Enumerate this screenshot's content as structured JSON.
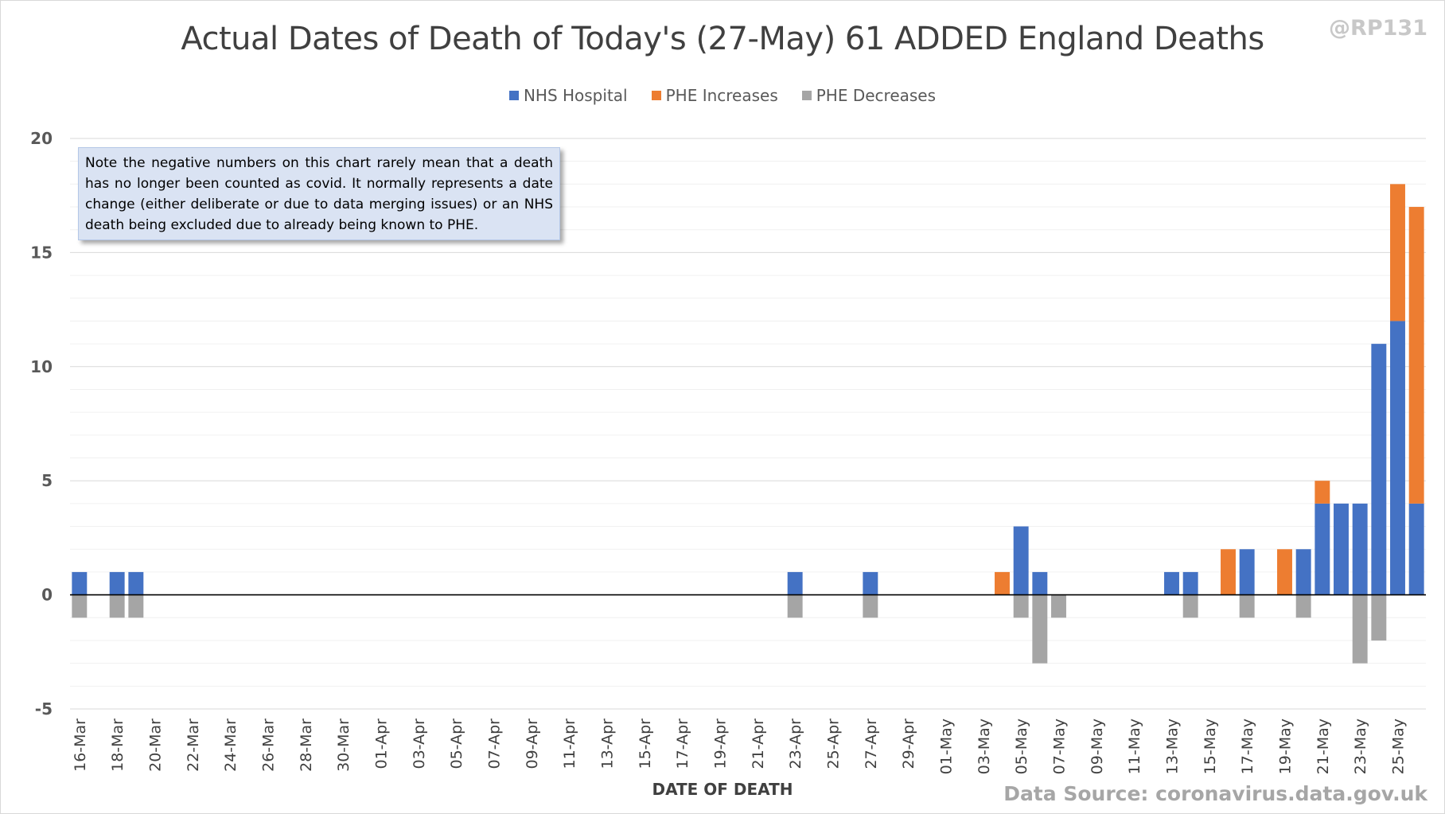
{
  "title": "Actual Dates of Death of Today's (27-May) 61 ADDED England Deaths",
  "handle": "@RP131",
  "note": "Note the negative numbers on this chart rarely mean that a death has no longer been counted as covid. It normally represents a date change (either deliberate or due to data merging issues) or an NHS death being excluded due to already being known to PHE.",
  "source": "Data Source: coronavirus.data.gov.uk",
  "chart_data": {
    "type": "bar",
    "stacked": true,
    "title": "Actual Dates of Death of Today's (27-May) 61 ADDED England Deaths",
    "xlabel": "DATE OF DEATH",
    "ylabel": "",
    "ylim": [
      -5,
      20
    ],
    "yticks": [
      -5,
      0,
      5,
      10,
      15,
      20
    ],
    "grid": true,
    "legend_position": "top",
    "colors": {
      "NHS Hospital": "#4472c4",
      "PHE Increases": "#ed7d31",
      "PHE Decreases": "#a5a5a5"
    },
    "categories": [
      "16-Mar",
      "17-Mar",
      "18-Mar",
      "19-Mar",
      "20-Mar",
      "21-Mar",
      "22-Mar",
      "23-Mar",
      "24-Mar",
      "25-Mar",
      "26-Mar",
      "27-Mar",
      "28-Mar",
      "29-Mar",
      "30-Mar",
      "31-Mar",
      "01-Apr",
      "02-Apr",
      "03-Apr",
      "04-Apr",
      "05-Apr",
      "06-Apr",
      "07-Apr",
      "08-Apr",
      "09-Apr",
      "10-Apr",
      "11-Apr",
      "12-Apr",
      "13-Apr",
      "14-Apr",
      "15-Apr",
      "16-Apr",
      "17-Apr",
      "18-Apr",
      "19-Apr",
      "20-Apr",
      "21-Apr",
      "22-Apr",
      "23-Apr",
      "24-Apr",
      "25-Apr",
      "26-Apr",
      "27-Apr",
      "28-Apr",
      "29-Apr",
      "30-Apr",
      "01-May",
      "02-May",
      "03-May",
      "04-May",
      "05-May",
      "06-May",
      "07-May",
      "08-May",
      "09-May",
      "10-May",
      "11-May",
      "12-May",
      "13-May",
      "14-May",
      "15-May",
      "16-May",
      "17-May",
      "18-May",
      "19-May",
      "20-May",
      "21-May",
      "22-May",
      "23-May",
      "24-May",
      "25-May",
      "26-May"
    ],
    "tick_labels": [
      "16-Mar",
      "18-Mar",
      "20-Mar",
      "22-Mar",
      "24-Mar",
      "26-Mar",
      "28-Mar",
      "30-Mar",
      "01-Apr",
      "03-Apr",
      "05-Apr",
      "07-Apr",
      "09-Apr",
      "11-Apr",
      "13-Apr",
      "15-Apr",
      "17-Apr",
      "19-Apr",
      "21-Apr",
      "23-Apr",
      "25-Apr",
      "27-Apr",
      "29-Apr",
      "01-May",
      "03-May",
      "05-May",
      "07-May",
      "09-May",
      "11-May",
      "13-May",
      "15-May",
      "17-May",
      "19-May",
      "21-May",
      "23-May",
      "25-May"
    ],
    "series": [
      {
        "name": "NHS Hospital",
        "values": [
          1,
          0,
          1,
          1,
          0,
          0,
          0,
          0,
          0,
          0,
          0,
          0,
          0,
          0,
          0,
          0,
          0,
          0,
          0,
          0,
          0,
          0,
          0,
          0,
          0,
          0,
          0,
          0,
          0,
          0,
          0,
          0,
          0,
          0,
          0,
          0,
          0,
          0,
          1,
          0,
          0,
          0,
          1,
          0,
          0,
          0,
          0,
          0,
          0,
          0,
          3,
          1,
          0,
          0,
          0,
          0,
          0,
          0,
          1,
          1,
          0,
          0,
          2,
          0,
          0,
          2,
          4,
          4,
          4,
          11,
          12,
          4
        ]
      },
      {
        "name": "PHE Increases",
        "values": [
          0,
          0,
          0,
          0,
          0,
          0,
          0,
          0,
          0,
          0,
          0,
          0,
          0,
          0,
          0,
          0,
          0,
          0,
          0,
          0,
          0,
          0,
          0,
          0,
          0,
          0,
          0,
          0,
          0,
          0,
          0,
          0,
          0,
          0,
          0,
          0,
          0,
          0,
          0,
          0,
          0,
          0,
          0,
          0,
          0,
          0,
          0,
          0,
          0,
          1,
          0,
          0,
          0,
          0,
          0,
          0,
          0,
          0,
          0,
          0,
          0,
          2,
          0,
          0,
          2,
          0,
          1,
          0,
          0,
          0,
          6,
          13
        ]
      },
      {
        "name": "PHE Decreases",
        "values": [
          -1,
          0,
          -1,
          -1,
          0,
          0,
          0,
          0,
          0,
          0,
          0,
          0,
          0,
          0,
          0,
          0,
          0,
          0,
          0,
          0,
          0,
          0,
          0,
          0,
          0,
          0,
          0,
          0,
          0,
          0,
          0,
          0,
          0,
          0,
          0,
          0,
          0,
          0,
          -1,
          0,
          0,
          0,
          -1,
          0,
          0,
          0,
          0,
          0,
          0,
          0,
          -1,
          -3,
          -1,
          0,
          0,
          0,
          0,
          0,
          0,
          -1,
          0,
          0,
          -1,
          0,
          0,
          -1,
          0,
          0,
          -3,
          -2,
          0,
          0
        ]
      }
    ]
  }
}
